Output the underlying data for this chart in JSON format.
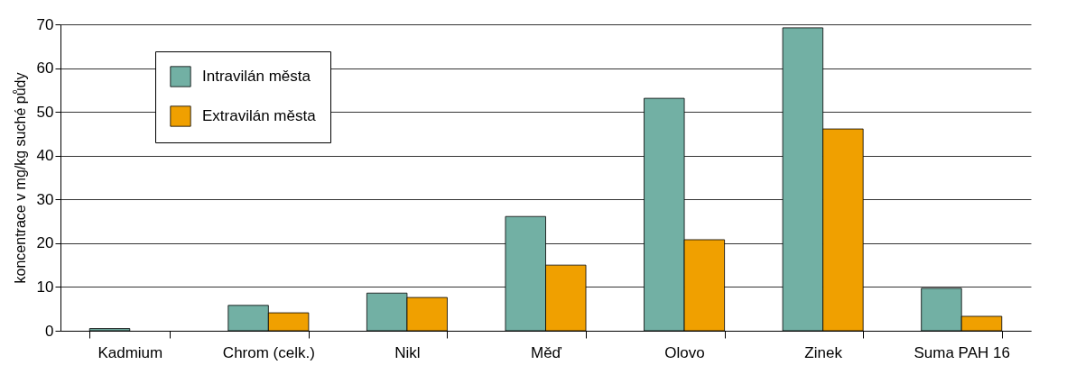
{
  "chart_data": {
    "type": "bar",
    "ylabel": "koncentrace v mg/kg suché půdy",
    "categories": [
      "Kadmium",
      "Chrom (celk.)",
      "Nikl",
      "Měď",
      "Olovo",
      "Zinek",
      "Suma PAH 16"
    ],
    "series": [
      {
        "name": "Intravilán města",
        "color": "#72b0a4",
        "values": [
          0.5,
          5.8,
          8.6,
          26.1,
          53.1,
          69.2,
          9.7
        ]
      },
      {
        "name": "Extravilán města",
        "color": "#f0a000",
        "values": [
          null,
          4.1,
          7.6,
          15.0,
          20.8,
          46.1,
          3.3
        ]
      }
    ],
    "ylim": [
      0,
      70
    ],
    "yticks": [
      0,
      10,
      20,
      30,
      40,
      50,
      60,
      70
    ],
    "grid": "y",
    "legend": "top left"
  }
}
